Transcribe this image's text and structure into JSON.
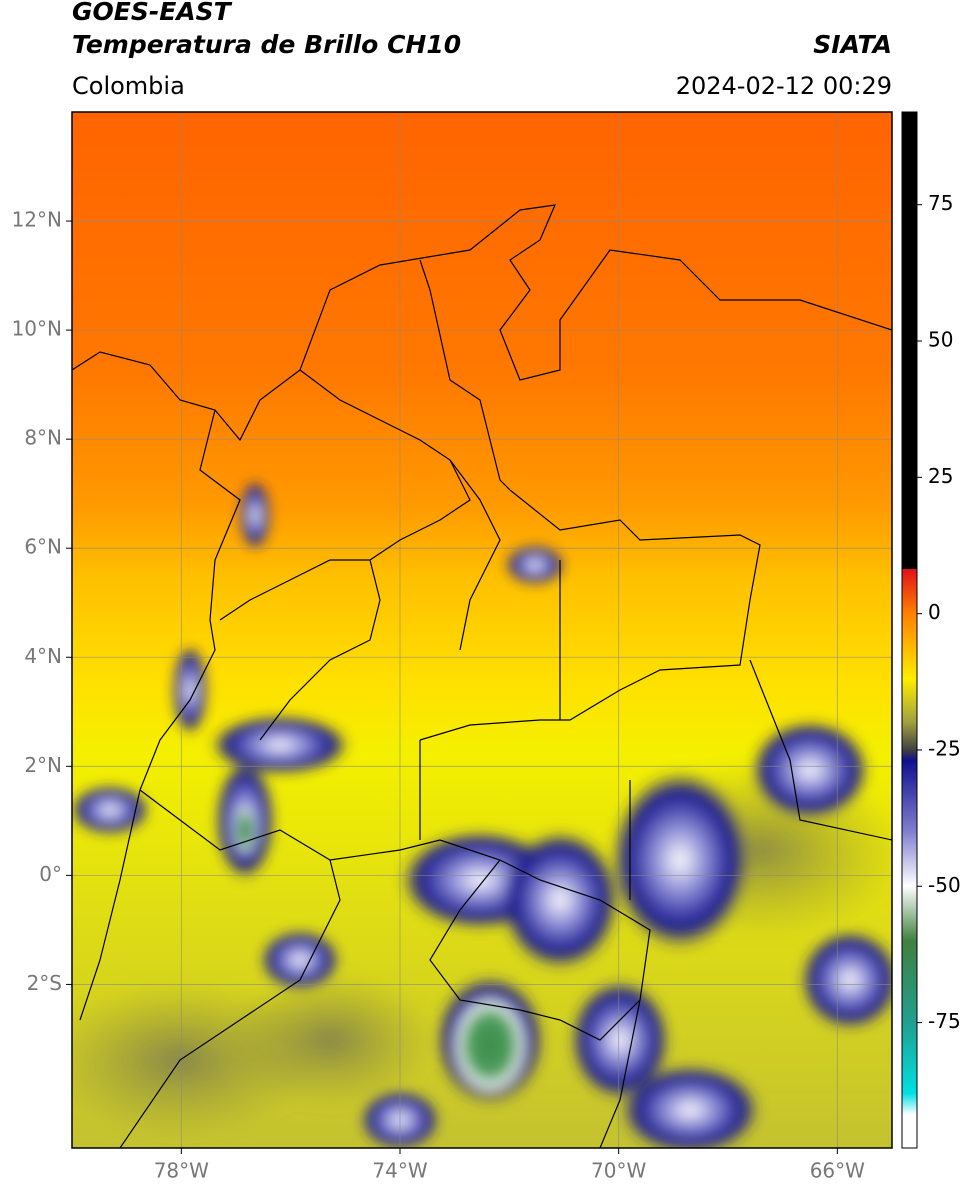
{
  "header": {
    "title": "GOES-EAST",
    "subtitle": "Temperatura de Brillo CH10",
    "source": "SIATA",
    "region": "Colombia",
    "datetime": "2024-02-12 00:29"
  },
  "map": {
    "xlim": [
      -80,
      -65
    ],
    "ylim": [
      -5,
      14
    ],
    "xticks": [
      {
        "value": -78,
        "label": "78°W"
      },
      {
        "value": -74,
        "label": "74°W"
      },
      {
        "value": -70,
        "label": "70°W"
      },
      {
        "value": -66,
        "label": "66°W"
      }
    ],
    "yticks": [
      {
        "value": 12,
        "label": "12°N"
      },
      {
        "value": 10,
        "label": "10°N"
      },
      {
        "value": 8,
        "label": "8°N"
      },
      {
        "value": 6,
        "label": "6°N"
      },
      {
        "value": 4,
        "label": "4°N"
      },
      {
        "value": 2,
        "label": "2°N"
      },
      {
        "value": 0,
        "label": "0°"
      },
      {
        "value": -2,
        "label": "2°S"
      }
    ],
    "grid": true
  },
  "colorbar": {
    "lim": [
      -98,
      92
    ],
    "ticks": [
      75,
      50,
      25,
      0,
      -25,
      -50,
      -75
    ]
  }
}
